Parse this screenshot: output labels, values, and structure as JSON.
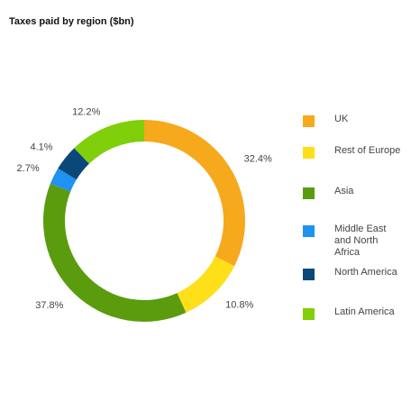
{
  "chart_data": {
    "type": "pie",
    "title": "Taxes paid by region ($bn)",
    "categories": [
      "UK",
      "Rest of Europe",
      "Asia",
      "Middle East and North Africa",
      "North America",
      "Latin America"
    ],
    "values": [
      32.4,
      10.8,
      37.8,
      2.7,
      4.1,
      12.2
    ],
    "value_labels": [
      "32.4%",
      "10.8%",
      "37.8%",
      "2.7%",
      "4.1%",
      "12.2%"
    ],
    "colors": [
      "#f6a91c",
      "#ffdf1a",
      "#5b9b0e",
      "#1e93f2",
      "#0a4879",
      "#7fcf0a"
    ],
    "legend": "right"
  }
}
